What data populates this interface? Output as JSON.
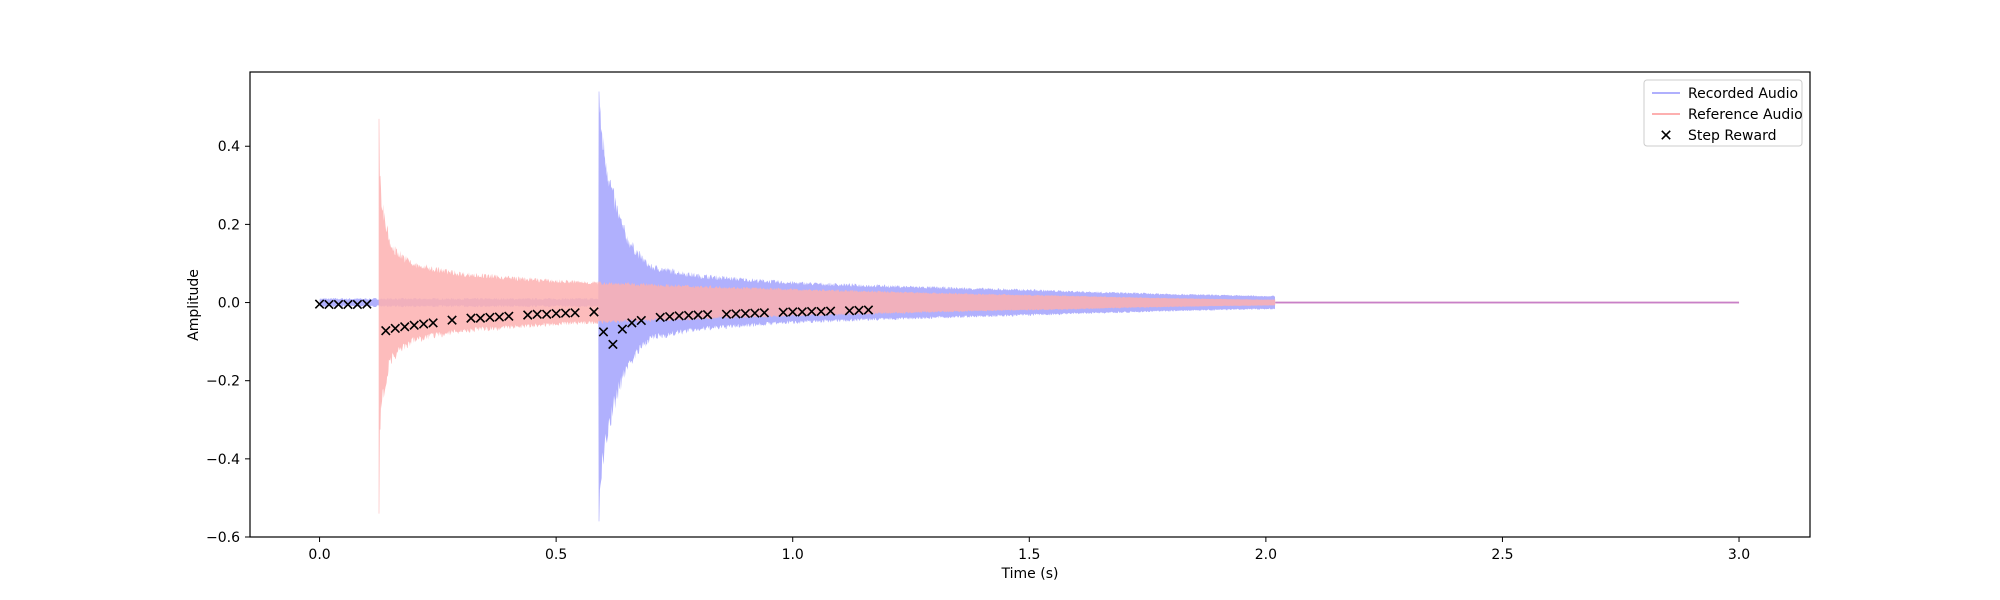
{
  "chart_data": {
    "type": "line",
    "title": "",
    "xlabel": "Time (s)",
    "ylabel": "Amplitude",
    "xlim": [
      -0.147,
      3.15
    ],
    "ylim": [
      -0.6,
      0.59
    ],
    "x_ticks": [
      0.0,
      0.5,
      1.0,
      1.5,
      2.0,
      2.5,
      3.0
    ],
    "x_tick_labels": [
      "0.0",
      "0.5",
      "1.0",
      "1.5",
      "2.0",
      "2.5",
      "3.0"
    ],
    "y_ticks": [
      -0.6,
      -0.4,
      -0.2,
      0.0,
      0.2,
      0.4
    ],
    "y_tick_labels": [
      "−0.6",
      "−0.4",
      "−0.2",
      "0.0",
      "0.2",
      "0.4"
    ],
    "grid": false,
    "legend": {
      "position": "top-right",
      "entries": [
        {
          "label": "Recorded Audio",
          "marker": "line",
          "color": "#b0b0fd"
        },
        {
          "label": "Reference Audio",
          "marker": "line",
          "color": "#fdb0b0"
        },
        {
          "label": "Step Reward",
          "marker": "x",
          "color": "#000000"
        }
      ]
    },
    "series": [
      {
        "name": "Recorded Audio",
        "kind": "waveform-envelope",
        "color": "#b0b0fd",
        "onset": 0.59,
        "end": 2.02,
        "pre_onset_noise": 0.012,
        "peak_upper": 0.54,
        "peak_lower": -0.56,
        "decay_points": [
          {
            "t": 0.59,
            "amp": 0.55
          },
          {
            "t": 0.6,
            "amp": 0.44
          },
          {
            "t": 0.62,
            "amp": 0.3
          },
          {
            "t": 0.65,
            "amp": 0.18
          },
          {
            "t": 0.7,
            "amp": 0.1
          },
          {
            "t": 0.8,
            "amp": 0.075
          },
          {
            "t": 1.0,
            "amp": 0.055
          },
          {
            "t": 1.5,
            "amp": 0.035
          },
          {
            "t": 2.0,
            "amp": 0.018
          }
        ],
        "flat_until": 3.0
      },
      {
        "name": "Reference Audio",
        "kind": "waveform-envelope",
        "color": "#fdb0b0",
        "onset": 0.125,
        "end": 2.02,
        "peak_upper": 0.47,
        "peak_lower": -0.54,
        "decay_points": [
          {
            "t": 0.125,
            "amp": 0.5
          },
          {
            "t": 0.13,
            "amp": 0.3
          },
          {
            "t": 0.15,
            "amp": 0.16
          },
          {
            "t": 0.2,
            "amp": 0.105
          },
          {
            "t": 0.3,
            "amp": 0.08
          },
          {
            "t": 0.5,
            "amp": 0.06
          },
          {
            "t": 0.8,
            "amp": 0.045
          },
          {
            "t": 1.2,
            "amp": 0.03
          },
          {
            "t": 1.6,
            "amp": 0.018
          },
          {
            "t": 2.0,
            "amp": 0.008
          }
        ],
        "flat_until": 3.0
      },
      {
        "name": "Step Reward",
        "kind": "scatter",
        "marker": "x",
        "color": "#000000",
        "points": [
          [
            0.0,
            -0.004
          ],
          [
            0.02,
            -0.005
          ],
          [
            0.04,
            -0.005
          ],
          [
            0.06,
            -0.005
          ],
          [
            0.08,
            -0.005
          ],
          [
            0.1,
            -0.004
          ],
          [
            0.14,
            -0.072
          ],
          [
            0.16,
            -0.066
          ],
          [
            0.18,
            -0.062
          ],
          [
            0.2,
            -0.058
          ],
          [
            0.22,
            -0.055
          ],
          [
            0.24,
            -0.052
          ],
          [
            0.28,
            -0.045
          ],
          [
            0.32,
            -0.04
          ],
          [
            0.34,
            -0.04
          ],
          [
            0.36,
            -0.038
          ],
          [
            0.38,
            -0.037
          ],
          [
            0.4,
            -0.035
          ],
          [
            0.44,
            -0.032
          ],
          [
            0.46,
            -0.03
          ],
          [
            0.48,
            -0.03
          ],
          [
            0.5,
            -0.028
          ],
          [
            0.52,
            -0.027
          ],
          [
            0.54,
            -0.026
          ],
          [
            0.58,
            -0.024
          ],
          [
            0.6,
            -0.075
          ],
          [
            0.62,
            -0.107
          ],
          [
            0.64,
            -0.068
          ],
          [
            0.66,
            -0.052
          ],
          [
            0.68,
            -0.046
          ],
          [
            0.72,
            -0.038
          ],
          [
            0.74,
            -0.036
          ],
          [
            0.76,
            -0.034
          ],
          [
            0.78,
            -0.033
          ],
          [
            0.8,
            -0.032
          ],
          [
            0.82,
            -0.031
          ],
          [
            0.86,
            -0.03
          ],
          [
            0.88,
            -0.029
          ],
          [
            0.9,
            -0.028
          ],
          [
            0.92,
            -0.027
          ],
          [
            0.94,
            -0.026
          ],
          [
            0.98,
            -0.025
          ],
          [
            1.0,
            -0.024
          ],
          [
            1.02,
            -0.024
          ],
          [
            1.04,
            -0.023
          ],
          [
            1.06,
            -0.023
          ],
          [
            1.08,
            -0.022
          ],
          [
            1.12,
            -0.021
          ],
          [
            1.14,
            -0.02
          ],
          [
            1.16,
            -0.019
          ]
        ]
      }
    ]
  }
}
